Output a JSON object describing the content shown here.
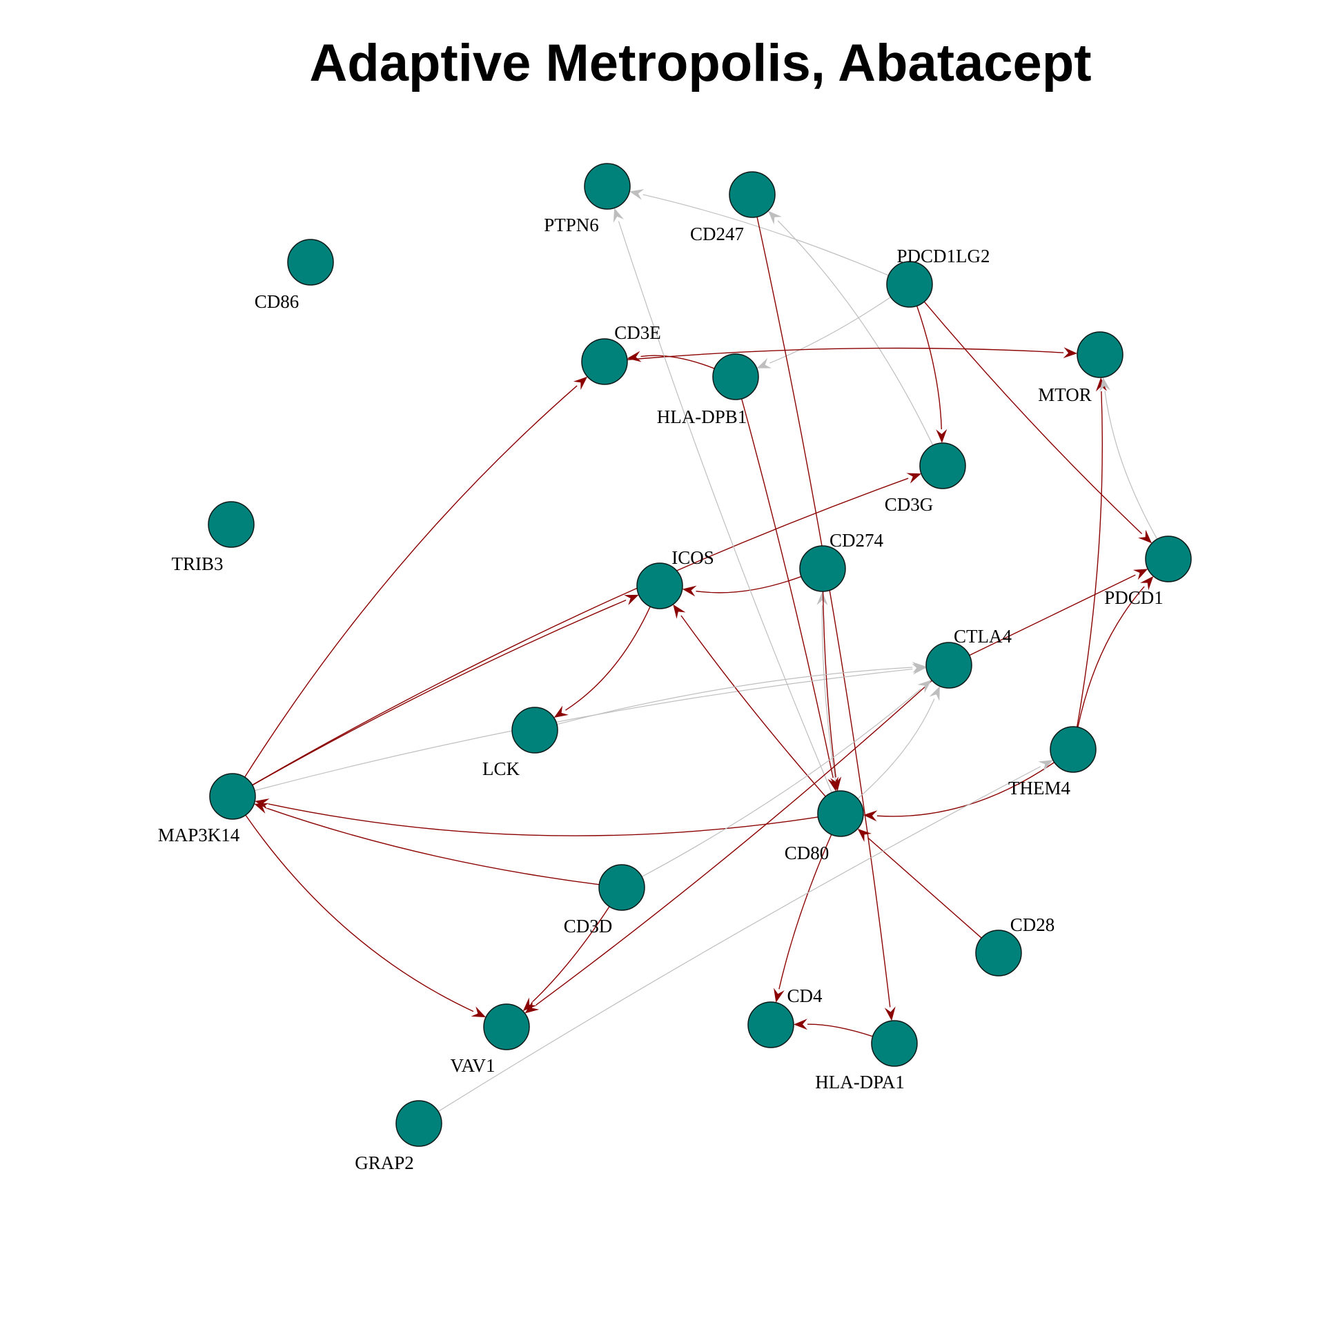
{
  "title": "Adaptive Metropolis, Abatacept",
  "colors": {
    "node_fill": "#00827A",
    "node_stroke": "#0B1A18",
    "edge_positive": "#8B0000",
    "edge_neutral": "#BEBEBE",
    "background": "#FFFFFF"
  },
  "nodes": [
    {
      "id": "PTPN6",
      "label": "PTPN6"
    },
    {
      "id": "CD247",
      "label": "CD247"
    },
    {
      "id": "CD86",
      "label": "CD86"
    },
    {
      "id": "PDCD1LG2",
      "label": "PDCD1LG2"
    },
    {
      "id": "CD3E",
      "label": "CD3E"
    },
    {
      "id": "HLA-DPB1",
      "label": "HLA-DPB1"
    },
    {
      "id": "MTOR",
      "label": "MTOR"
    },
    {
      "id": "CD3G",
      "label": "CD3G"
    },
    {
      "id": "TRIB3",
      "label": "TRIB3"
    },
    {
      "id": "CD274",
      "label": "CD274"
    },
    {
      "id": "ICOS",
      "label": "ICOS"
    },
    {
      "id": "PDCD1",
      "label": "PDCD1"
    },
    {
      "id": "CTLA4",
      "label": "CTLA4"
    },
    {
      "id": "LCK",
      "label": "LCK"
    },
    {
      "id": "THEM4",
      "label": "THEM4"
    },
    {
      "id": "MAP3K14",
      "label": "MAP3K14"
    },
    {
      "id": "CD80",
      "label": "CD80"
    },
    {
      "id": "CD3D",
      "label": "CD3D"
    },
    {
      "id": "CD28",
      "label": "CD28"
    },
    {
      "id": "CD4",
      "label": "CD4"
    },
    {
      "id": "VAV1",
      "label": "VAV1"
    },
    {
      "id": "HLA-DPA1",
      "label": "HLA-DPA1"
    },
    {
      "id": "GRAP2",
      "label": "GRAP2"
    }
  ],
  "edges": [
    {
      "from": "PDCD1LG2",
      "to": "PTPN6",
      "type": "neutral"
    },
    {
      "from": "PDCD1LG2",
      "to": "HLA-DPB1",
      "type": "neutral"
    },
    {
      "from": "PDCD1LG2",
      "to": "CD3G",
      "type": "positive"
    },
    {
      "from": "PDCD1LG2",
      "to": "PDCD1",
      "type": "positive"
    },
    {
      "from": "CD3G",
      "to": "CD247",
      "type": "neutral"
    },
    {
      "from": "CD247",
      "to": "HLA-DPA1",
      "type": "positive"
    },
    {
      "from": "HLA-DPB1",
      "to": "CD3E",
      "type": "positive"
    },
    {
      "from": "HLA-DPB1",
      "to": "CD80",
      "type": "positive"
    },
    {
      "from": "CD3E",
      "to": "MTOR",
      "type": "positive"
    },
    {
      "from": "MAP3K14",
      "to": "CD3E",
      "type": "positive"
    },
    {
      "from": "MAP3K14",
      "to": "CD3G",
      "type": "positive"
    },
    {
      "from": "MAP3K14",
      "to": "ICOS",
      "type": "positive"
    },
    {
      "from": "MAP3K14",
      "to": "CTLA4",
      "type": "neutral"
    },
    {
      "from": "MAP3K14",
      "to": "VAV1",
      "type": "positive"
    },
    {
      "from": "CD274",
      "to": "ICOS",
      "type": "positive"
    },
    {
      "from": "CD80",
      "to": "CD274",
      "type": "neutral"
    },
    {
      "from": "CD274",
      "to": "CD80",
      "type": "positive"
    },
    {
      "from": "CD80",
      "to": "PTPN6",
      "type": "neutral"
    },
    {
      "from": "CD80",
      "to": "ICOS",
      "type": "positive"
    },
    {
      "from": "CD80",
      "to": "MAP3K14",
      "type": "positive"
    },
    {
      "from": "CD80",
      "to": "CTLA4",
      "type": "neutral"
    },
    {
      "from": "CD80",
      "to": "CD4",
      "type": "positive"
    },
    {
      "from": "CD28",
      "to": "CD80",
      "type": "positive"
    },
    {
      "from": "ICOS",
      "to": "LCK",
      "type": "positive"
    },
    {
      "from": "LCK",
      "to": "CTLA4",
      "type": "neutral"
    },
    {
      "from": "THEM4",
      "to": "MTOR",
      "type": "positive"
    },
    {
      "from": "THEM4",
      "to": "PDCD1",
      "type": "positive"
    },
    {
      "from": "PDCD1",
      "to": "MTOR",
      "type": "neutral"
    },
    {
      "from": "THEM4",
      "to": "CD80",
      "type": "positive"
    },
    {
      "from": "GRAP2",
      "to": "THEM4",
      "type": "neutral"
    },
    {
      "from": "CTLA4",
      "to": "PDCD1",
      "type": "positive"
    },
    {
      "from": "CTLA4",
      "to": "VAV1",
      "type": "positive"
    },
    {
      "from": "CD3D",
      "to": "MAP3K14",
      "type": "positive"
    },
    {
      "from": "CD3D",
      "to": "VAV1",
      "type": "positive"
    },
    {
      "from": "CD3D",
      "to": "CTLA4",
      "type": "neutral"
    },
    {
      "from": "HLA-DPA1",
      "to": "CD4",
      "type": "positive"
    }
  ]
}
